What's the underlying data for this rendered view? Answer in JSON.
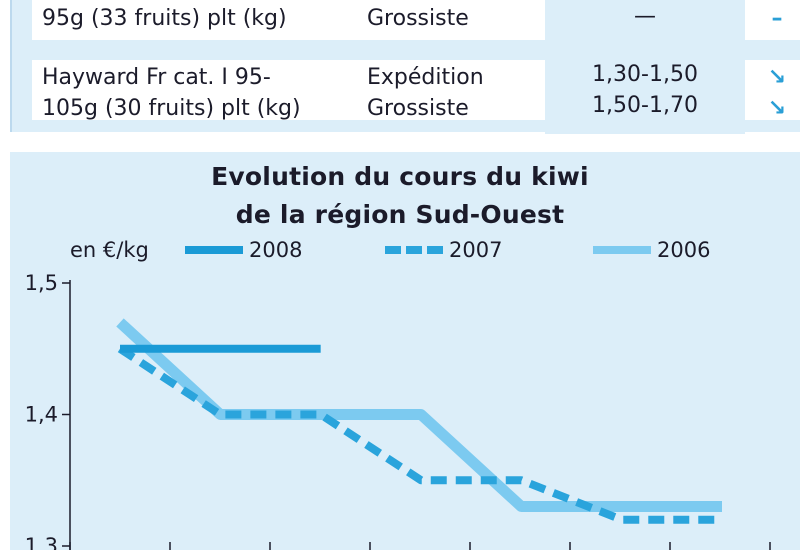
{
  "table": {
    "rows": [
      {
        "product_lines": [
          "95g (33 fruits) plt (kg)"
        ],
        "stage_lines": [
          "Grossiste"
        ],
        "price_lines": [
          "—"
        ],
        "trend_lines": [
          "–"
        ]
      },
      {
        "product_lines": [
          "Hayward Fr cat. I 95-",
          "105g (30 fruits) plt (kg)"
        ],
        "stage_lines": [
          "Expédition",
          "Grossiste"
        ],
        "price_lines": [
          "1,30-1,50",
          "1,50-1,70"
        ],
        "trend_lines": [
          "↘",
          "↘"
        ]
      }
    ]
  },
  "chart_data": {
    "type": "line",
    "title_line1": "Evolution du cours du kiwi",
    "title_line2": "de la région Sud-Ouest",
    "ylabel": "en €/kg",
    "yticks": [
      "1,5",
      "1,4",
      "1,3"
    ],
    "ylim": [
      1.3,
      1.5
    ],
    "xlim": [
      0,
      7
    ],
    "legend_placement": "top",
    "series": [
      {
        "name": "2008",
        "style": "solid",
        "color": "#1a9ad6",
        "x": [
          0,
          2
        ],
        "y": [
          1.45,
          1.45
        ]
      },
      {
        "name": "2007",
        "style": "dashed",
        "color": "#2aa4dc",
        "x": [
          0,
          1,
          2,
          3,
          4,
          5,
          6
        ],
        "y": [
          1.45,
          1.4,
          1.4,
          1.35,
          1.35,
          1.32,
          1.32
        ]
      },
      {
        "name": "2006",
        "style": "solid",
        "color": "#7ccaf0",
        "x": [
          0,
          1,
          3,
          4,
          6
        ],
        "y": [
          1.47,
          1.4,
          1.4,
          1.33,
          1.33
        ]
      }
    ]
  }
}
